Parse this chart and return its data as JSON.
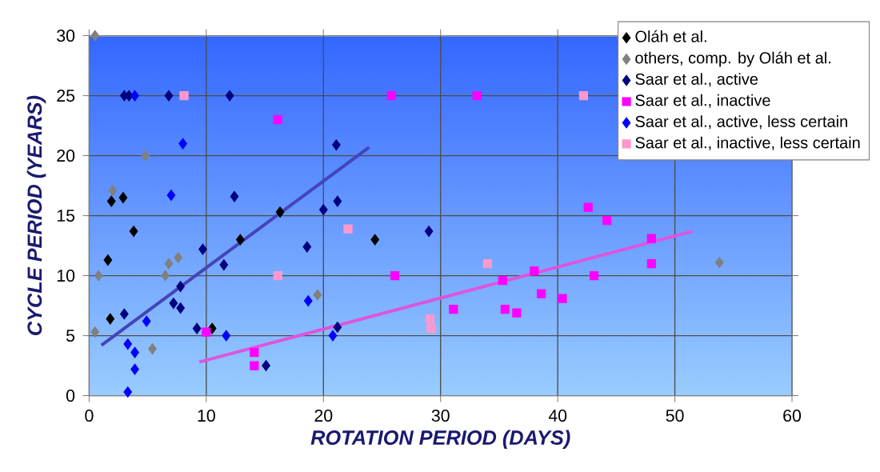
{
  "chart_data": {
    "type": "scatter",
    "xlabel": "ROTATION PERIOD (DAYS)",
    "ylabel": "CYCLE PERIOD (YEARS)",
    "xlim": [
      0,
      60
    ],
    "ylim": [
      0,
      30
    ],
    "xticks": [
      0,
      10,
      20,
      30,
      40,
      50,
      60
    ],
    "yticks": [
      0,
      5,
      10,
      15,
      20,
      25,
      30
    ],
    "grid": true,
    "legend": "top right",
    "series": [
      {
        "name": "Oláh et al.",
        "color": "#000000",
        "marker": "diamond",
        "x": [
          1.9,
          2.9,
          3.8,
          1.6,
          1.8,
          10.5,
          16.3,
          12.9,
          24.4
        ],
        "values": [
          16.2,
          16.5,
          13.7,
          11.3,
          6.4,
          5.6,
          15.3,
          13.0,
          13.0
        ]
      },
      {
        "name": "others, comp. by Oláh et al.",
        "color": "#808080",
        "marker": "diamond",
        "x": [
          0.5,
          4.8,
          2.0,
          0.8,
          6.8,
          7.6,
          6.5,
          0.5,
          5.4,
          19.5,
          53.8
        ],
        "values": [
          30,
          20,
          17.1,
          10,
          11.0,
          11.5,
          10,
          5.3,
          3.9,
          8.4,
          11.1
        ]
      },
      {
        "name": "Saar et al., active",
        "color": "#000080",
        "marker": "diamond",
        "x": [
          3.0,
          3.4,
          6.8,
          12.0,
          21.1,
          12.4,
          21.2,
          20.0,
          9.7,
          11.5,
          7.8,
          7.2,
          7.8,
          3.0,
          9.2,
          15.1,
          18.6,
          21.2,
          29.0
        ],
        "values": [
          25,
          25,
          25,
          25,
          20.9,
          16.6,
          16.2,
          15.5,
          12.2,
          10.9,
          9.1,
          7.7,
          7.3,
          6.8,
          5.6,
          2.5,
          12.4,
          5.7,
          13.7
        ]
      },
      {
        "name": "Saar et al., inactive",
        "color": "#ff00ff",
        "marker": "square",
        "x": [
          16.1,
          10.0,
          14.1,
          14.1,
          25.8,
          33.1,
          26.1,
          31.1,
          35.5,
          36.5,
          35.3,
          38.0,
          38.6,
          40.4,
          43.1,
          42.6,
          44.2,
          48.0,
          48.0
        ],
        "values": [
          23.0,
          5.3,
          3.6,
          2.5,
          25,
          25,
          10.0,
          7.2,
          7.2,
          6.9,
          9.6,
          10.4,
          8.5,
          8.1,
          10.0,
          15.7,
          14.6,
          13.1,
          11.0
        ]
      },
      {
        "name": "Saar et al., active, less certain",
        "color": "#0000ff",
        "marker": "diamond",
        "x": [
          3.9,
          8.0,
          7.0,
          4.9,
          3.3,
          3.9,
          3.9,
          3.3,
          11.7,
          18.7,
          20.8
        ],
        "values": [
          25,
          21.0,
          16.7,
          6.2,
          4.3,
          3.6,
          2.2,
          0.3,
          5.0,
          7.9,
          5.0
        ]
      },
      {
        "name": "Saar et al., inactive, less certain",
        "color": "#ff99cc",
        "marker": "square",
        "x": [
          8.1,
          16.1,
          22.1,
          34.0,
          29.1,
          29.2,
          42.2
        ],
        "values": [
          25,
          10,
          13.9,
          11.0,
          6.4,
          5.6,
          25
        ]
      },
      {
        "type": "line",
        "color": "#4444bb",
        "marker": "none",
        "x": [
          1.05,
          23.9
        ],
        "values": [
          4.2,
          20.7
        ]
      },
      {
        "type": "line",
        "color": "#dd55dd",
        "marker": "none",
        "x": [
          9.4,
          51.5
        ],
        "values": [
          2.8,
          13.7
        ]
      }
    ]
  }
}
